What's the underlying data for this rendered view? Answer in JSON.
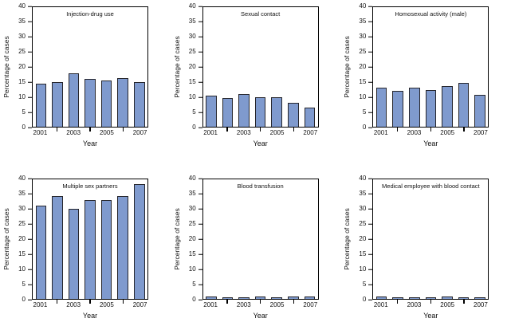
{
  "figure": {
    "background": "#ffffff",
    "colors": {
      "bar_fill": "#7f9ace",
      "bar_stroke": "#26262c",
      "axis": "#000000",
      "text": "#111111"
    }
  },
  "chart_data": [
    {
      "type": "bar",
      "title": "Injection-drug use",
      "categories": [
        "2001",
        "2002",
        "2003",
        "2004",
        "2005",
        "2006",
        "2007"
      ],
      "values": [
        14.4,
        15.0,
        18.0,
        16.0,
        15.6,
        16.2,
        15.0
      ],
      "xlabel": "Year",
      "ylabel": "Percentage of cases",
      "ylim": [
        0,
        40
      ],
      "yticks": [
        0,
        5,
        10,
        15,
        20,
        25,
        30,
        35,
        40
      ],
      "xtick_labels_shown": [
        "2001",
        "2003",
        "2005",
        "2007"
      ],
      "grid": false,
      "legend": "none"
    },
    {
      "type": "bar",
      "title": "Sexual contact",
      "categories": [
        "2001",
        "2002",
        "2003",
        "2004",
        "2005",
        "2006",
        "2007"
      ],
      "values": [
        10.4,
        9.6,
        10.9,
        9.9,
        9.9,
        7.9,
        6.4
      ],
      "xlabel": "Year",
      "ylabel": "Percentage of cases",
      "ylim": [
        0,
        40
      ],
      "yticks": [
        0,
        5,
        10,
        15,
        20,
        25,
        30,
        35,
        40
      ],
      "xtick_labels_shown": [
        "2001",
        "2003",
        "2005",
        "2007"
      ],
      "grid": false,
      "legend": "none"
    },
    {
      "type": "bar",
      "title": "Homosexual activity (male)",
      "categories": [
        "2001",
        "2002",
        "2003",
        "2004",
        "2005",
        "2006",
        "2007"
      ],
      "values": [
        13.1,
        12.0,
        13.1,
        12.2,
        13.5,
        14.7,
        10.7
      ],
      "xlabel": "Year",
      "ylabel": "Percentage of cases",
      "ylim": [
        0,
        40
      ],
      "yticks": [
        0,
        5,
        10,
        15,
        20,
        25,
        30,
        35,
        40
      ],
      "xtick_labels_shown": [
        "2001",
        "2003",
        "2005",
        "2007"
      ],
      "grid": false,
      "legend": "none"
    },
    {
      "type": "bar",
      "title": "Multiple sex partners",
      "categories": [
        "2001",
        "2002",
        "2003",
        "2004",
        "2005",
        "2006",
        "2007"
      ],
      "values": [
        31.3,
        34.4,
        30.2,
        33.0,
        33.2,
        34.5,
        38.5
      ],
      "xlabel": "Year",
      "ylabel": "Percentage of cases",
      "ylim": [
        0,
        40
      ],
      "yticks": [
        0,
        5,
        10,
        15,
        20,
        25,
        30,
        35,
        40
      ],
      "xtick_labels_shown": [
        "2001",
        "2003",
        "2005",
        "2007"
      ],
      "grid": false,
      "legend": "none"
    },
    {
      "type": "bar",
      "title": "Blood transfusion",
      "categories": [
        "2001",
        "2002",
        "2003",
        "2004",
        "2005",
        "2006",
        "2007"
      ],
      "values": [
        0.8,
        0.5,
        0.5,
        0.8,
        0.4,
        0.7,
        0.7
      ],
      "xlabel": "Year",
      "ylabel": "Percentage of cases",
      "ylim": [
        0,
        40
      ],
      "yticks": [
        0,
        5,
        10,
        15,
        20,
        25,
        30,
        35,
        40
      ],
      "xtick_labels_shown": [
        "2001",
        "2003",
        "2005",
        "2007"
      ],
      "grid": false,
      "legend": "none"
    },
    {
      "type": "bar",
      "title": "Medical employee with blood contact",
      "categories": [
        "2001",
        "2002",
        "2003",
        "2004",
        "2005",
        "2006",
        "2007"
      ],
      "values": [
        0.8,
        0.6,
        0.6,
        0.6,
        0.8,
        0.6,
        0.6
      ],
      "xlabel": "Year",
      "ylabel": "Percentage of cases",
      "ylim": [
        0,
        40
      ],
      "yticks": [
        0,
        5,
        10,
        15,
        20,
        25,
        30,
        35,
        40
      ],
      "xtick_labels_shown": [
        "2001",
        "2003",
        "2005",
        "2007"
      ],
      "grid": false,
      "legend": "none"
    }
  ]
}
